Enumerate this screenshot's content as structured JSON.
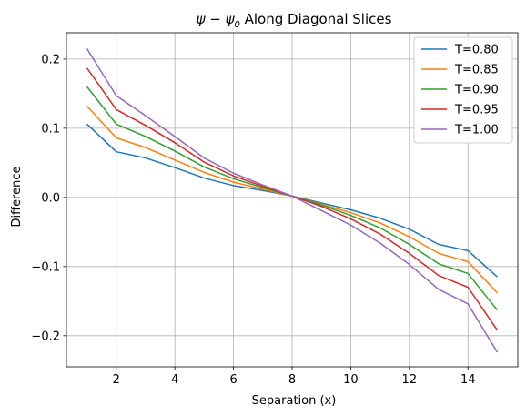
{
  "chart_data": {
    "type": "line",
    "title_main": "ψ − ψ",
    "title_sub": "0",
    "title_rest": " Along Diagonal Slices",
    "xlabel": "Separation (x)",
    "ylabel": "Difference",
    "xlim": [
      0.3,
      15.7
    ],
    "ylim": [
      -0.245,
      0.238
    ],
    "xticks": [
      2,
      4,
      6,
      8,
      10,
      12,
      14
    ],
    "xtick_labels": [
      "2",
      "4",
      "6",
      "8",
      "10",
      "12",
      "14"
    ],
    "yticks": [
      -0.2,
      -0.1,
      0.0,
      0.1,
      0.2
    ],
    "ytick_labels": [
      "−0.2",
      "−0.1",
      "0.0",
      "0.1",
      "0.2"
    ],
    "grid": true,
    "legend_position": "top-right",
    "x": [
      1,
      2,
      3,
      4,
      5,
      6,
      7,
      8,
      9,
      10,
      11,
      12,
      13,
      14,
      15
    ],
    "series": [
      {
        "name": "T=0.80",
        "color": "#1f77b4",
        "values": [
          0.106,
          0.066,
          0.057,
          0.043,
          0.028,
          0.017,
          0.01,
          0.002,
          -0.008,
          -0.018,
          -0.03,
          -0.046,
          -0.068,
          -0.077,
          -0.115
        ]
      },
      {
        "name": "T=0.85",
        "color": "#ff7f0e",
        "values": [
          0.132,
          0.086,
          0.072,
          0.054,
          0.036,
          0.022,
          0.012,
          0.002,
          -0.01,
          -0.022,
          -0.037,
          -0.057,
          -0.081,
          -0.093,
          -0.138
        ]
      },
      {
        "name": "T=0.90",
        "color": "#2ca02c",
        "values": [
          0.16,
          0.106,
          0.088,
          0.067,
          0.044,
          0.027,
          0.014,
          0.002,
          -0.011,
          -0.026,
          -0.044,
          -0.068,
          -0.096,
          -0.11,
          -0.163
        ]
      },
      {
        "name": "T=0.95",
        "color": "#d62728",
        "values": [
          0.187,
          0.127,
          0.104,
          0.079,
          0.051,
          0.031,
          0.016,
          0.002,
          -0.013,
          -0.031,
          -0.053,
          -0.081,
          -0.113,
          -0.13,
          -0.192
        ]
      },
      {
        "name": "T=1.00",
        "color": "#9467bd",
        "values": [
          0.215,
          0.147,
          0.118,
          0.088,
          0.057,
          0.035,
          0.018,
          0.002,
          -0.019,
          -0.04,
          -0.066,
          -0.097,
          -0.133,
          -0.154,
          -0.224
        ]
      }
    ]
  }
}
